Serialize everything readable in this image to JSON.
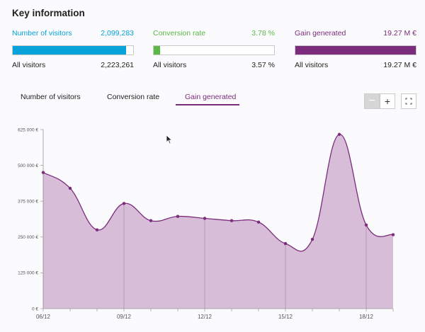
{
  "title": "Key information",
  "kpis": [
    {
      "label": "Number of visitors",
      "value": "2,099,283",
      "bottom_label": "All visitors",
      "bottom_value": "2,223,261",
      "fill_ratio": 0.944,
      "color": "#05a3d9"
    },
    {
      "label": "Conversion rate",
      "value": "3.78 %",
      "bottom_label": "All visitors",
      "bottom_value": "3.57 %",
      "fill_ratio": 0.055,
      "color": "#5bb847"
    },
    {
      "label": "Gain generated",
      "value": "19.27 M €",
      "bottom_label": "All visitors",
      "bottom_value": "19.27 M €",
      "fill_ratio": 1.0,
      "color": "#7b2c7d"
    }
  ],
  "tabs": [
    {
      "label": "Number of visitors",
      "active": false
    },
    {
      "label": "Conversion rate",
      "active": false
    },
    {
      "label": "Gain generated",
      "active": true
    }
  ],
  "zoom": {
    "minus_icon": "minus-icon",
    "plus_icon": "plus-icon",
    "fullscreen_icon": "expand-icon"
  },
  "chart_data": {
    "type": "area",
    "series": [
      {
        "values": [
          475000,
          420000,
          275000,
          367000,
          307000,
          322000,
          315000,
          307000,
          302000,
          227000,
          242000,
          608000,
          292000,
          258000
        ]
      }
    ],
    "x": [
      "06/12",
      "",
      "",
      "09/12",
      "",
      "",
      "12/12",
      "",
      "",
      "15/12",
      "",
      "",
      "18/12",
      ""
    ],
    "x_tick_labels": [
      "06/12",
      "09/12",
      "12/12",
      "15/12",
      "18/12"
    ],
    "y_tick_labels": [
      "0 €",
      "125 000 €",
      "250 000 €",
      "375 000 €",
      "500 000 €",
      "625 000 €"
    ],
    "ylim": [
      0,
      625000
    ],
    "color": "#7b2c7d",
    "fill": "#d8bdd9"
  }
}
